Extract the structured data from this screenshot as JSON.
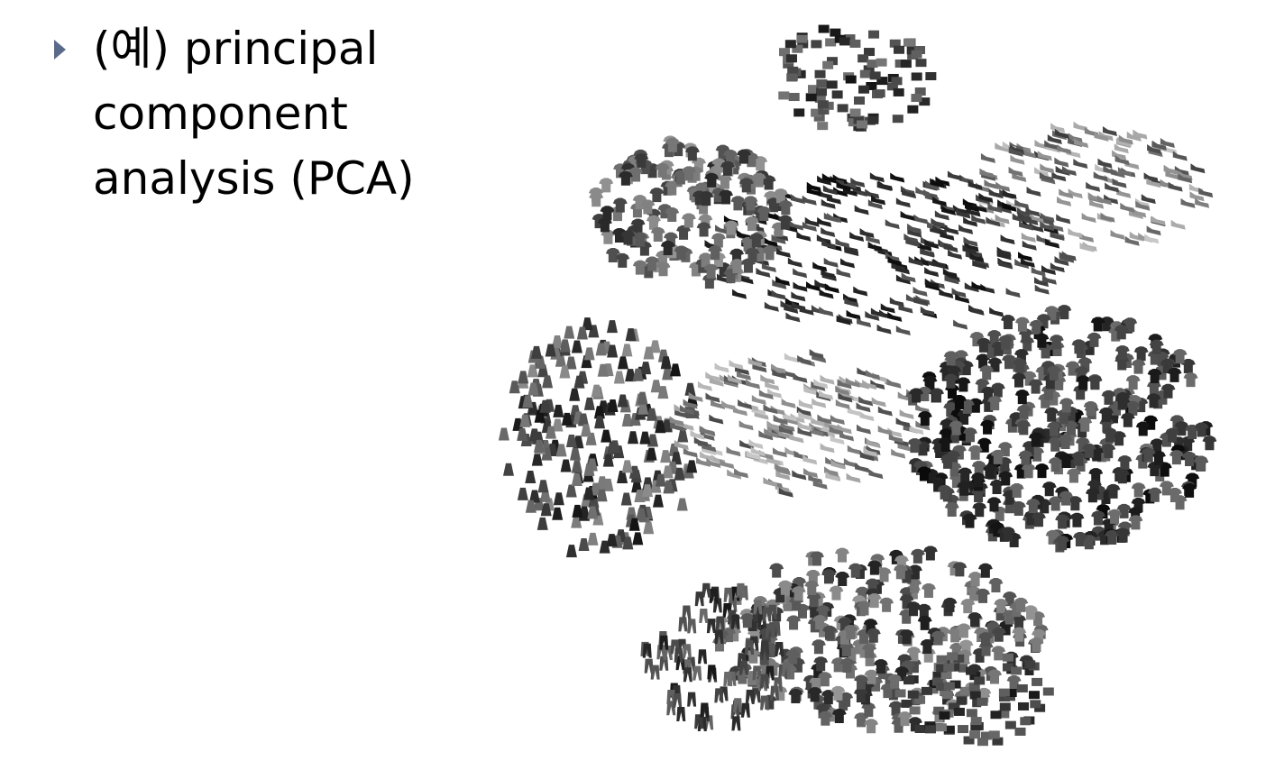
{
  "slide": {
    "bullet_lines": [
      "(예) principal",
      "component",
      "analysis (PCA)"
    ],
    "bullet_color": "#5a6a8a",
    "figure_icon": "fashion-mnist-embedding-image"
  }
}
